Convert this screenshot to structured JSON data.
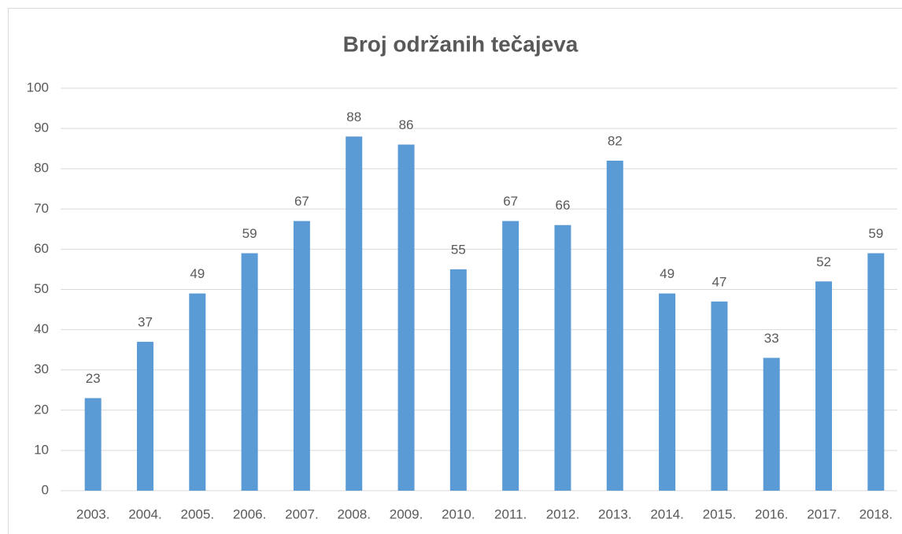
{
  "chart_data": {
    "type": "bar",
    "title": "Broj održanih tečajeva",
    "categories": [
      "2003.",
      "2004.",
      "2005.",
      "2006.",
      "2007.",
      "2008.",
      "2009.",
      "2010.",
      "2011.",
      "2012.",
      "2013.",
      "2014.",
      "2015.",
      "2016.",
      "2017.",
      "2018."
    ],
    "values": [
      23,
      37,
      49,
      59,
      67,
      88,
      86,
      55,
      67,
      66,
      82,
      49,
      47,
      33,
      52,
      59
    ],
    "color": "#5b9bd5",
    "ylim": [
      0,
      100
    ],
    "yticks": [
      0,
      10,
      20,
      30,
      40,
      50,
      60,
      70,
      80,
      90,
      100
    ],
    "grid": true
  }
}
